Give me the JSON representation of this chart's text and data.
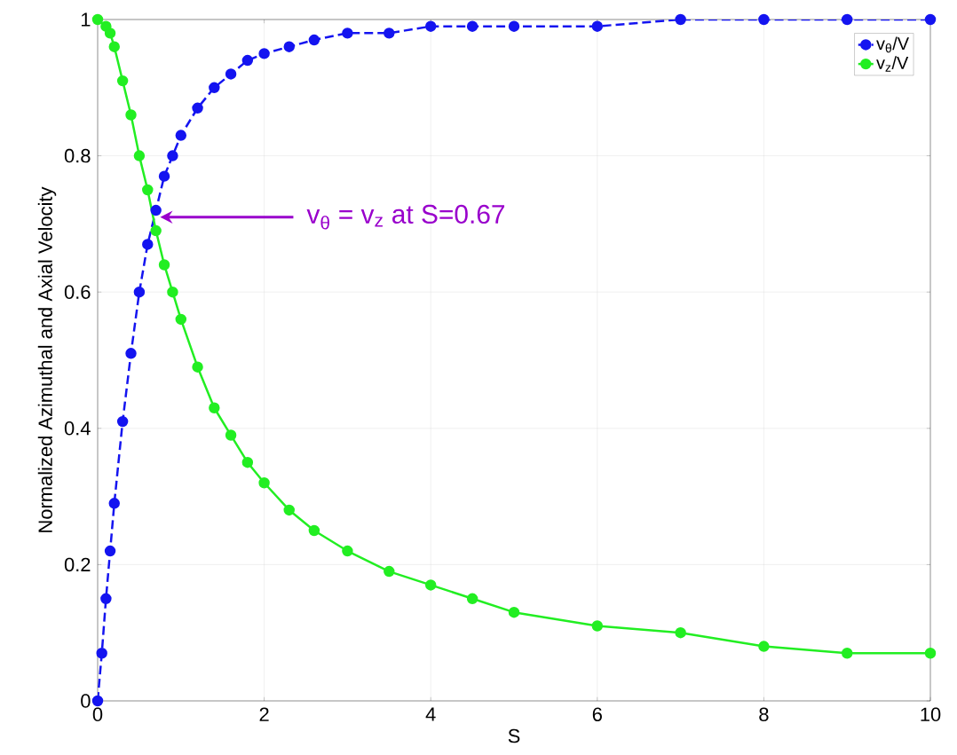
{
  "chart_data": {
    "type": "line",
    "xlabel": "S",
    "ylabel": "Normalized Azimuthal and Axial Velocity",
    "x": [
      0,
      0.05,
      0.1,
      0.15,
      0.2,
      0.3,
      0.4,
      0.5,
      0.6,
      0.7,
      0.8,
      0.9,
      1.0,
      1.2,
      1.4,
      1.6,
      1.8,
      2.0,
      2.3,
      2.6,
      3.0,
      3.5,
      4.0,
      4.5,
      5,
      6,
      7,
      8,
      9,
      10
    ],
    "series": [
      {
        "name": "v$_{θ}$/V",
        "color": "#1414f0",
        "line_style": "dashed",
        "values": [
          0,
          0.07,
          0.15,
          0.22,
          0.29,
          0.41,
          0.51,
          0.6,
          0.67,
          0.72,
          0.77,
          0.8,
          0.83,
          0.87,
          0.9,
          0.92,
          0.94,
          0.95,
          0.96,
          0.97,
          0.98,
          0.98,
          0.99,
          0.99,
          0.99,
          0.99,
          1.0,
          1.0,
          1.0,
          1.0
        ]
      },
      {
        "name": "v$_{z}$/V",
        "color": "#22ee22",
        "line_style": "solid",
        "x": [
          0,
          0.1,
          0.15,
          0.2,
          0.3,
          0.4,
          0.5,
          0.6,
          0.7,
          0.8,
          0.9,
          1.0,
          1.2,
          1.4,
          1.6,
          1.8,
          2.0,
          2.3,
          2.6,
          3.0,
          3.5,
          4.0,
          4.5,
          5,
          6,
          7,
          8,
          9,
          10
        ],
        "values": [
          1,
          0.99,
          0.98,
          0.96,
          0.91,
          0.86,
          0.8,
          0.75,
          0.69,
          0.64,
          0.6,
          0.56,
          0.49,
          0.43,
          0.39,
          0.35,
          0.32,
          0.28,
          0.25,
          0.22,
          0.19,
          0.17,
          0.15,
          0.13,
          0.11,
          0.1,
          0.08,
          0.07,
          0.07
        ]
      }
    ],
    "xlim": [
      0,
      10
    ],
    "xticks": [
      0,
      2,
      4,
      6,
      8,
      10
    ],
    "ylim": [
      0,
      1
    ],
    "yticks": [
      0,
      0.2,
      0.4,
      0.6,
      0.8,
      1
    ],
    "grid": true,
    "legend": "top right",
    "marker": "circle",
    "annotations": [
      "v$_{θ}$ = v$_{z}$ at S=0.67"
    ]
  }
}
